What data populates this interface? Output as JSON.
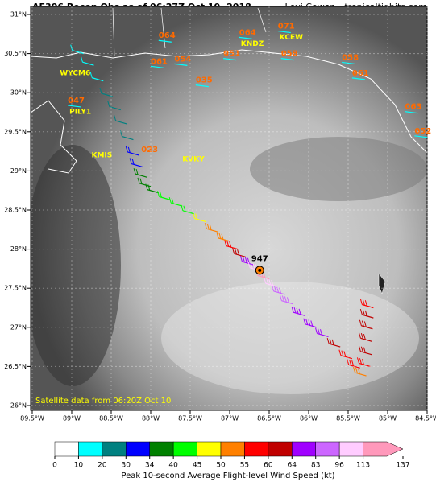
{
  "map": {
    "title": "AF306 Recon Obs as of 06:27Z Oct 10, 2018",
    "credit": "Levi Cowan - tropicaltidbits.com",
    "note": "Satellite data from 06:20Z Oct 10",
    "xlim": [
      -89.5,
      -84.5
    ],
    "ylim": [
      26,
      31
    ],
    "xticks": [
      {
        "value": -89.5,
        "label": "89.5°W"
      },
      {
        "value": -89,
        "label": "89°W"
      },
      {
        "value": -88.5,
        "label": "88.5°W"
      },
      {
        "value": -88,
        "label": "88°W"
      },
      {
        "value": -87.5,
        "label": "87.5°W"
      },
      {
        "value": -87,
        "label": "87°W"
      },
      {
        "value": -86.5,
        "label": "86.5°W"
      },
      {
        "value": -86,
        "label": "86°W"
      },
      {
        "value": -85.5,
        "label": "85.5°W"
      },
      {
        "value": -85,
        "label": "85°W"
      },
      {
        "value": -84.5,
        "label": "84.5°W"
      }
    ],
    "yticks": [
      {
        "value": 26,
        "label": "26°N"
      },
      {
        "value": 26.5,
        "label": "26.5°N"
      },
      {
        "value": 27,
        "label": "27°N"
      },
      {
        "value": 27.5,
        "label": "27.5°N"
      },
      {
        "value": 28,
        "label": "28°N"
      },
      {
        "value": 28.5,
        "label": "28.5°N"
      },
      {
        "value": 29,
        "label": "29°N"
      },
      {
        "value": 29.5,
        "label": "29.5°N"
      },
      {
        "value": 30,
        "label": "30°N"
      },
      {
        "value": 30.5,
        "label": "30.5°N"
      },
      {
        "value": 31,
        "label": "31°N"
      }
    ],
    "stations": [
      {
        "label": "064",
        "value": 64,
        "lon": -87.9,
        "lat": 30.73
      },
      {
        "label": "064",
        "value": 64,
        "code": "KNDZ",
        "lon": -86.88,
        "lat": 30.77
      },
      {
        "label": "071",
        "value": 71,
        "code": "KCEW",
        "lon": -86.39,
        "lat": 30.85
      },
      {
        "label": "051",
        "value": 51,
        "lon": -87.08,
        "lat": 30.5
      },
      {
        "label": "058",
        "value": 58,
        "lon": -86.35,
        "lat": 30.5
      },
      {
        "label": "061",
        "value": 61,
        "lon": -88.0,
        "lat": 30.4
      },
      {
        "label": "054",
        "value": 54,
        "lon": -87.7,
        "lat": 30.43
      },
      {
        "label": "035",
        "value": 35,
        "lon": -87.43,
        "lat": 30.16
      },
      {
        "label": "058",
        "value": 58,
        "lon": -85.58,
        "lat": 30.45
      },
      {
        "label": "061",
        "value": 61,
        "lon": -85.45,
        "lat": 30.25
      },
      {
        "label": "063",
        "value": 63,
        "lon": -84.78,
        "lat": 29.82
      },
      {
        "label": "052",
        "value": 52,
        "lon": -84.66,
        "lat": 29.51
      },
      {
        "label": "047",
        "value": 47,
        "code": "PILY1",
        "lon": -89.05,
        "lat": 29.9
      }
    ],
    "extra_codes": [
      {
        "code": "WYCM6",
        "lon": -89.15,
        "lat": 30.25
      },
      {
        "code": "KMIS",
        "lon": -88.75,
        "lat": 29.2
      },
      {
        "code": "KVKY",
        "lon": -87.6,
        "lat": 29.15
      }
    ],
    "extra_values": [
      {
        "label": "023",
        "value": 23,
        "lon": -88.12,
        "lat": 29.27
      }
    ],
    "pressure": {
      "label": "947",
      "value": 947,
      "lon": -86.62,
      "lat": 27.88
    },
    "center": {
      "lon": -86.62,
      "lat": 27.73
    },
    "flight": {
      "lon": [
        -88.85,
        -88.72,
        -88.6,
        -88.48,
        -88.38,
        -88.3,
        -88.22,
        -88.15,
        -88.1,
        -88.05,
        -88.0,
        -87.9,
        -87.75,
        -87.6,
        -87.45,
        -87.3,
        -87.15,
        -87.0,
        -86.9,
        -86.8,
        -86.7,
        -86.6,
        -86.5,
        -86.4,
        -86.3,
        -86.2,
        -86.05,
        -85.9,
        -85.75,
        -85.6,
        -85.45,
        -85.35,
        -85.27,
        -85.22,
        -85.2,
        -85.2,
        -85.19,
        -85.18,
        -85.18
      ],
      "lat": [
        30.5,
        30.35,
        30.15,
        29.95,
        29.78,
        29.6,
        29.4,
        29.2,
        29.05,
        28.92,
        28.8,
        28.72,
        28.63,
        28.55,
        28.45,
        28.35,
        28.22,
        28.1,
        28.0,
        27.9,
        27.8,
        27.72,
        27.62,
        27.52,
        27.42,
        27.3,
        27.15,
        27.0,
        26.88,
        26.75,
        26.6,
        26.48,
        26.38,
        26.5,
        26.65,
        26.82,
        26.98,
        27.12,
        27.25
      ],
      "wind": [
        12,
        15,
        18,
        20,
        22,
        25,
        28,
        31,
        33,
        35,
        36,
        38,
        40,
        42,
        44,
        46,
        50,
        52,
        56,
        62,
        75,
        100,
        118,
        100,
        90,
        85,
        80,
        70,
        66,
        62,
        58,
        56,
        52,
        58,
        60,
        61,
        62,
        60,
        58
      ]
    },
    "colorbar": {
      "label": "Peak 10-second Average Flight-level Wind Speed (kt)",
      "bins": [
        0,
        10,
        20,
        30,
        34,
        40,
        45,
        50,
        55,
        60,
        64,
        83,
        96,
        113,
        137
      ],
      "colors": [
        "#ffffff",
        "#00ffff",
        "#008080",
        "#0000ff",
        "#008000",
        "#00ff00",
        "#ffff00",
        "#ff8000",
        "#ff0000",
        "#c00000",
        "#a000ff",
        "#cc66ff",
        "#ffccff",
        "#ff99bb"
      ]
    }
  }
}
